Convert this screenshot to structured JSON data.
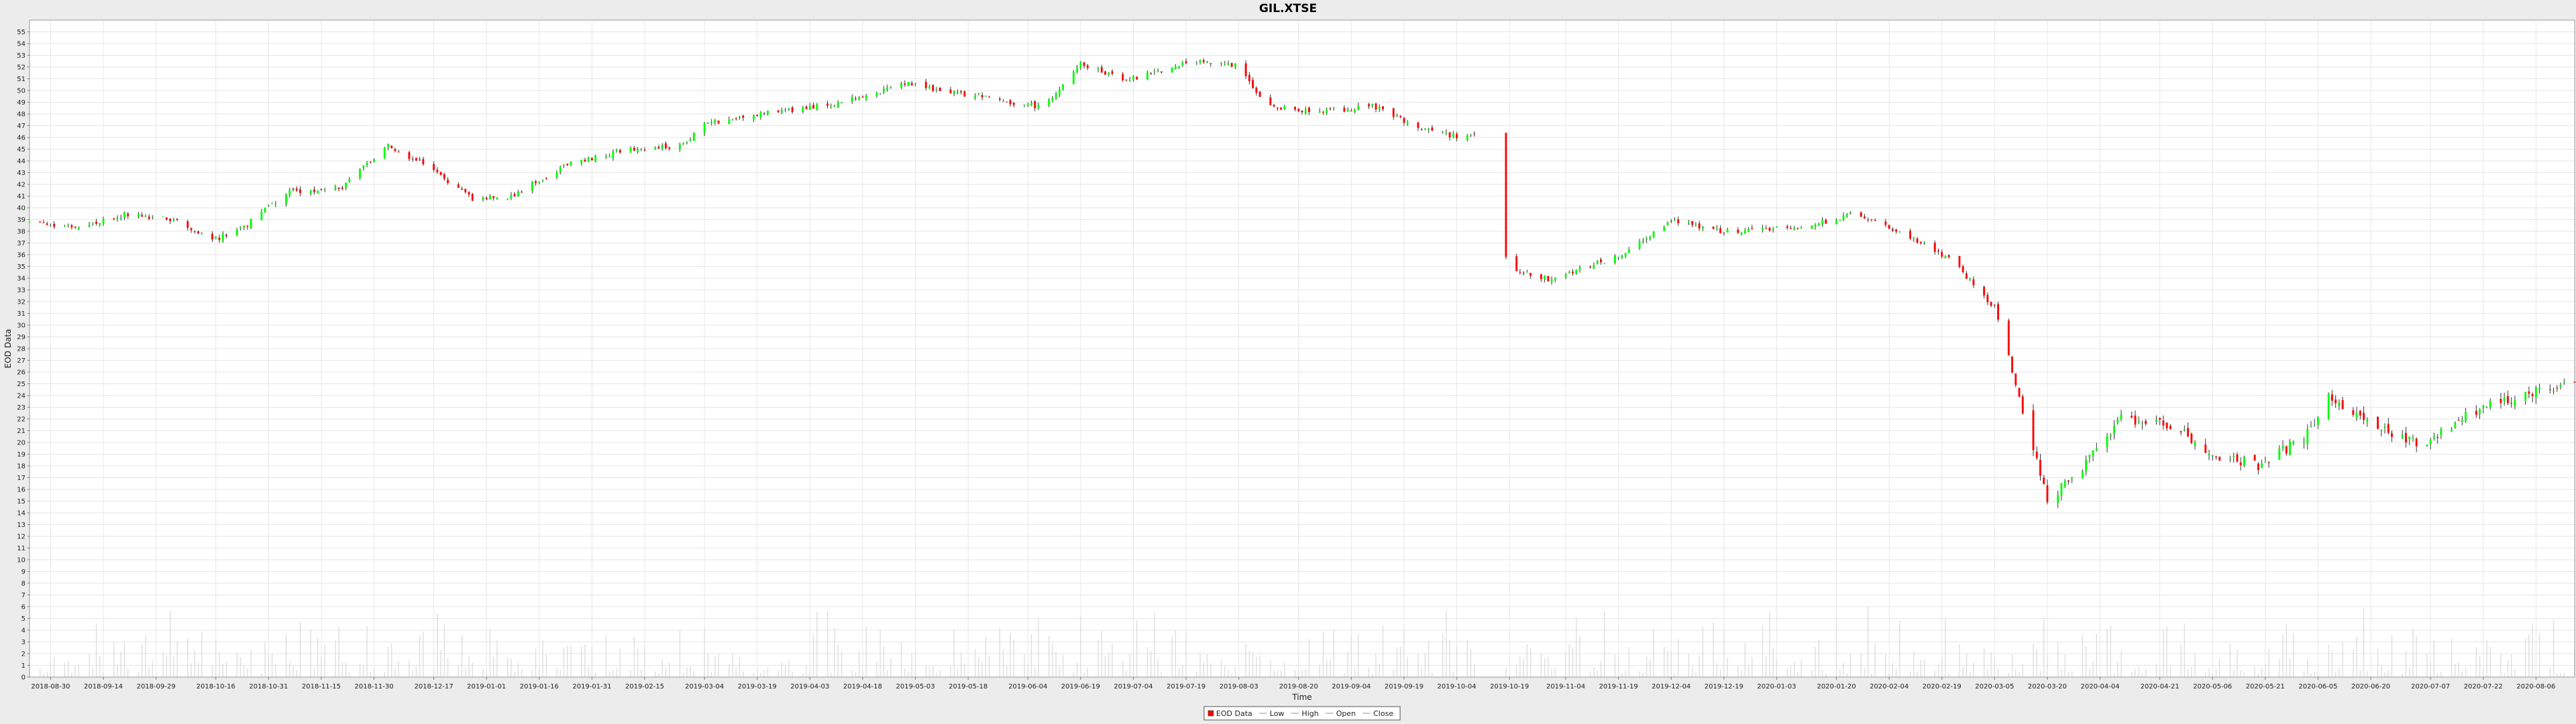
{
  "chart_data": {
    "type": "candlestick",
    "title": "GIL.XTSE",
    "xlabel": "Time",
    "ylabel": "EOD Data",
    "ylim": [
      0,
      56
    ],
    "y_ticks": [
      0,
      1,
      2,
      3,
      4,
      5,
      6,
      7,
      8,
      9,
      10,
      11,
      12,
      13,
      14,
      15,
      16,
      17,
      18,
      19,
      20,
      21,
      22,
      23,
      24,
      25,
      26,
      27,
      28,
      29,
      30,
      31,
      32,
      33,
      34,
      35,
      36,
      37,
      38,
      39,
      40,
      41,
      42,
      43,
      44,
      45,
      46,
      47,
      48,
      49,
      50,
      51,
      52,
      53,
      54,
      55
    ],
    "x_range": [
      "2018-08-24",
      "2020-08-17"
    ],
    "x_ticks": [
      "2018-08-30",
      "2018-09-14",
      "2018-09-29",
      "2018-10-16",
      "2018-10-31",
      "2018-11-15",
      "2018-11-30",
      "2018-12-17",
      "2019-01-01",
      "2019-01-16",
      "2019-01-31",
      "2019-02-15",
      "2019-03-04",
      "2019-03-19",
      "2019-04-03",
      "2019-04-18",
      "2019-05-03",
      "2019-05-18",
      "2019-06-04",
      "2019-06-19",
      "2019-07-04",
      "2019-07-19",
      "2019-08-03",
      "2019-08-20",
      "2019-09-04",
      "2019-09-19",
      "2019-10-04",
      "2019-10-19",
      "2019-11-04",
      "2019-11-19",
      "2019-12-04",
      "2019-12-19",
      "2020-01-03",
      "2020-01-20",
      "2020-02-04",
      "2020-02-19",
      "2020-03-05",
      "2020-03-20",
      "2020-04-04",
      "2020-04-21",
      "2020-05-06",
      "2020-05-21",
      "2020-06-05",
      "2020-06-20",
      "2020-07-07",
      "2020-07-22",
      "2020-08-06"
    ],
    "grid": true,
    "legend_position": "bottom-center",
    "legend": [
      "EOD Data",
      "Low",
      "High",
      "Open",
      "Close"
    ],
    "colors": {
      "up": "#00ff00",
      "down": "#ff0000",
      "volume": "#dedede",
      "grid": "#e6e6e6"
    },
    "price_anchors": [
      [
        "2018-08-24",
        38.8
      ],
      [
        "2018-09-05",
        38.3
      ],
      [
        "2018-09-20",
        39.4
      ],
      [
        "2018-10-05",
        39.0
      ],
      [
        "2018-10-15",
        37.2
      ],
      [
        "2018-10-25",
        38.6
      ],
      [
        "2018-11-05",
        41.3
      ],
      [
        "2018-11-20",
        41.6
      ],
      [
        "2018-12-04",
        45.2
      ],
      [
        "2018-12-15",
        43.6
      ],
      [
        "2018-12-28",
        40.7
      ],
      [
        "2019-01-08",
        41.0
      ],
      [
        "2019-01-25",
        43.8
      ],
      [
        "2019-02-10",
        44.9
      ],
      [
        "2019-02-26",
        45.3
      ],
      [
        "2019-03-04",
        47.2
      ],
      [
        "2019-03-20",
        48.0
      ],
      [
        "2019-04-10",
        48.8
      ],
      [
        "2019-04-30",
        50.6
      ],
      [
        "2019-05-20",
        49.5
      ],
      [
        "2019-06-08",
        48.6
      ],
      [
        "2019-06-19",
        52.2
      ],
      [
        "2019-07-02",
        50.8
      ],
      [
        "2019-07-20",
        52.5
      ],
      [
        "2019-08-03",
        52.1
      ],
      [
        "2019-08-10",
        48.8
      ],
      [
        "2019-08-25",
        48.1
      ],
      [
        "2019-09-10",
        48.7
      ],
      [
        "2019-09-25",
        46.6
      ],
      [
        "2019-10-05",
        46.0
      ],
      [
        "2019-10-09",
        46.3
      ],
      [
        "2019-10-19",
        34.8
      ],
      [
        "2019-10-30",
        33.9
      ],
      [
        "2019-11-20",
        36.0
      ],
      [
        "2019-12-04",
        38.9
      ],
      [
        "2019-12-19",
        38.0
      ],
      [
        "2020-01-10",
        38.3
      ],
      [
        "2020-01-25",
        39.5
      ],
      [
        "2020-02-10",
        37.6
      ],
      [
        "2020-02-22",
        35.5
      ],
      [
        "2020-03-05",
        31.5
      ],
      [
        "2020-03-12",
        24.0
      ],
      [
        "2020-03-20",
        15.0
      ],
      [
        "2020-03-30",
        18.0
      ],
      [
        "2020-04-10",
        22.0
      ],
      [
        "2020-04-25",
        21.5
      ],
      [
        "2020-05-05",
        19.0
      ],
      [
        "2020-05-20",
        18.0
      ],
      [
        "2020-06-01",
        20.5
      ],
      [
        "2020-06-08",
        23.8
      ],
      [
        "2020-06-20",
        21.5
      ],
      [
        "2020-07-05",
        19.8
      ],
      [
        "2020-07-20",
        22.8
      ],
      [
        "2020-08-05",
        24.2
      ],
      [
        "2020-08-17",
        25.3
      ]
    ],
    "gap": [
      "2019-10-10",
      "2019-10-17"
    ]
  }
}
